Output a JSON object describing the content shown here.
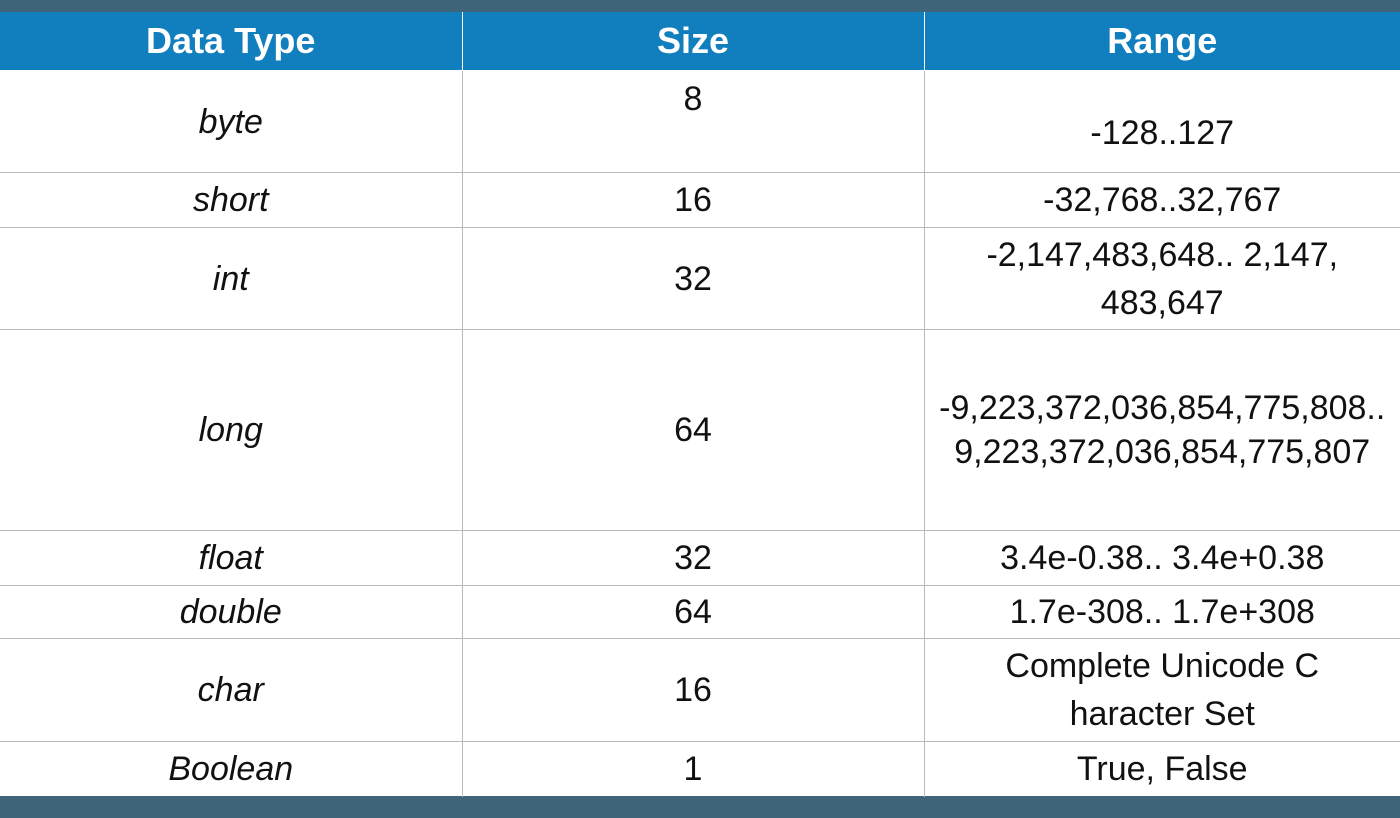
{
  "table": {
    "headers": [
      "Data Type",
      "Size",
      "Range"
    ],
    "rows": [
      {
        "type": "byte",
        "size": "8",
        "range": "-128..127"
      },
      {
        "type": "short",
        "size": "16",
        "range": "-32,768..32,767"
      },
      {
        "type": "int",
        "size": "32",
        "range": "-2,147,483,648.. 2,147,483,647"
      },
      {
        "type": "long",
        "size": "64",
        "range": "-9,223,372,036,854,775,808.. 9,223,372,036,854,775,807"
      },
      {
        "type": "float",
        "size": "32",
        "range": "3.4e-0.38.. 3.4e+0.38"
      },
      {
        "type": "double",
        "size": "64",
        "range": "1.7e-308.. 1.7e+308"
      },
      {
        "type": "char",
        "size": "16",
        "range": "Complete Unicode Character Set"
      },
      {
        "type": "Boolean",
        "size": "1",
        "range": "True, False"
      }
    ]
  },
  "colors": {
    "header_bg": "#117ebd",
    "border_band": "#3f6478",
    "grid_line": "#b9b9b9"
  }
}
